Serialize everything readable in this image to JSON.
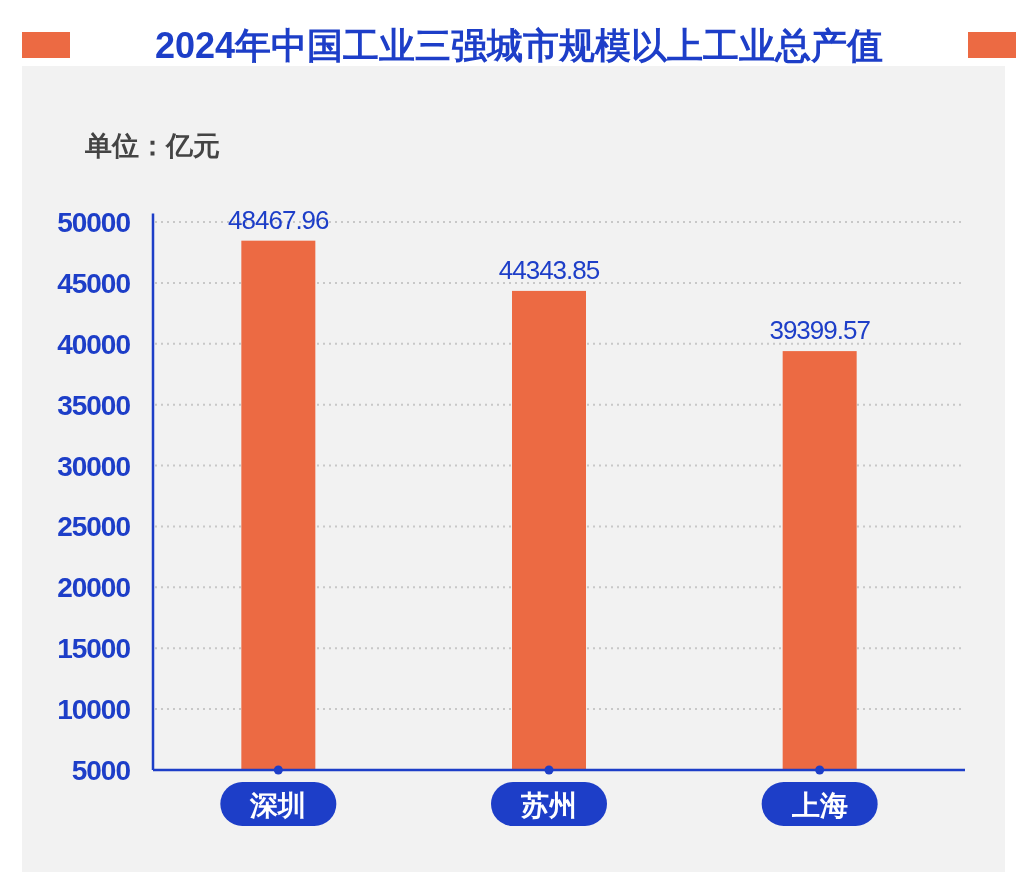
{
  "chart_data": {
    "type": "bar",
    "title": "2024年中国工业三强城市规模以上工业总产值",
    "annotations": [
      "单位：亿元"
    ],
    "categories": [
      "深圳",
      "苏州",
      "上海"
    ],
    "values": [
      48467.96,
      44343.85,
      39399.57
    ],
    "color": "#ec6a43",
    "ylim": [
      5000,
      50700
    ],
    "yticks": [
      5000,
      10000,
      15000,
      20000,
      25000,
      30000,
      35000,
      40000,
      45000,
      50000
    ],
    "grid": "y",
    "data_labels": true
  }
}
